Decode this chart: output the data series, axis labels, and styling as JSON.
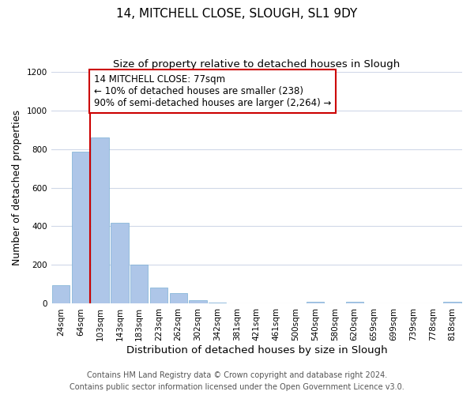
{
  "title": "14, MITCHELL CLOSE, SLOUGH, SL1 9DY",
  "subtitle": "Size of property relative to detached houses in Slough",
  "xlabel": "Distribution of detached houses by size in Slough",
  "ylabel": "Number of detached properties",
  "categories": [
    "24sqm",
    "64sqm",
    "103sqm",
    "143sqm",
    "183sqm",
    "223sqm",
    "262sqm",
    "302sqm",
    "342sqm",
    "381sqm",
    "421sqm",
    "461sqm",
    "500sqm",
    "540sqm",
    "580sqm",
    "620sqm",
    "659sqm",
    "699sqm",
    "739sqm",
    "778sqm",
    "818sqm"
  ],
  "values": [
    95,
    785,
    860,
    420,
    200,
    85,
    55,
    20,
    5,
    2,
    1,
    1,
    0,
    10,
    0,
    10,
    0,
    0,
    0,
    0,
    10
  ],
  "bar_color": "#aec6e8",
  "bar_edge_color": "#7aafd4",
  "grid_color": "#d0d8e8",
  "background_color": "#ffffff",
  "annotation_line1": "14 MITCHELL CLOSE: 77sqm",
  "annotation_line2": "← 10% of detached houses are smaller (238)",
  "annotation_line3": "90% of semi-detached houses are larger (2,264) →",
  "annotation_box_color": "#cc0000",
  "vline_color": "#cc0000",
  "vline_x": 1.5,
  "ylim": [
    0,
    1200
  ],
  "yticks": [
    0,
    200,
    400,
    600,
    800,
    1000,
    1200
  ],
  "footer_line1": "Contains HM Land Registry data © Crown copyright and database right 2024.",
  "footer_line2": "Contains public sector information licensed under the Open Government Licence v3.0.",
  "title_fontsize": 11,
  "subtitle_fontsize": 9.5,
  "xlabel_fontsize": 9.5,
  "ylabel_fontsize": 9,
  "tick_fontsize": 7.5,
  "footer_fontsize": 7,
  "annotation_fontsize": 8.5
}
